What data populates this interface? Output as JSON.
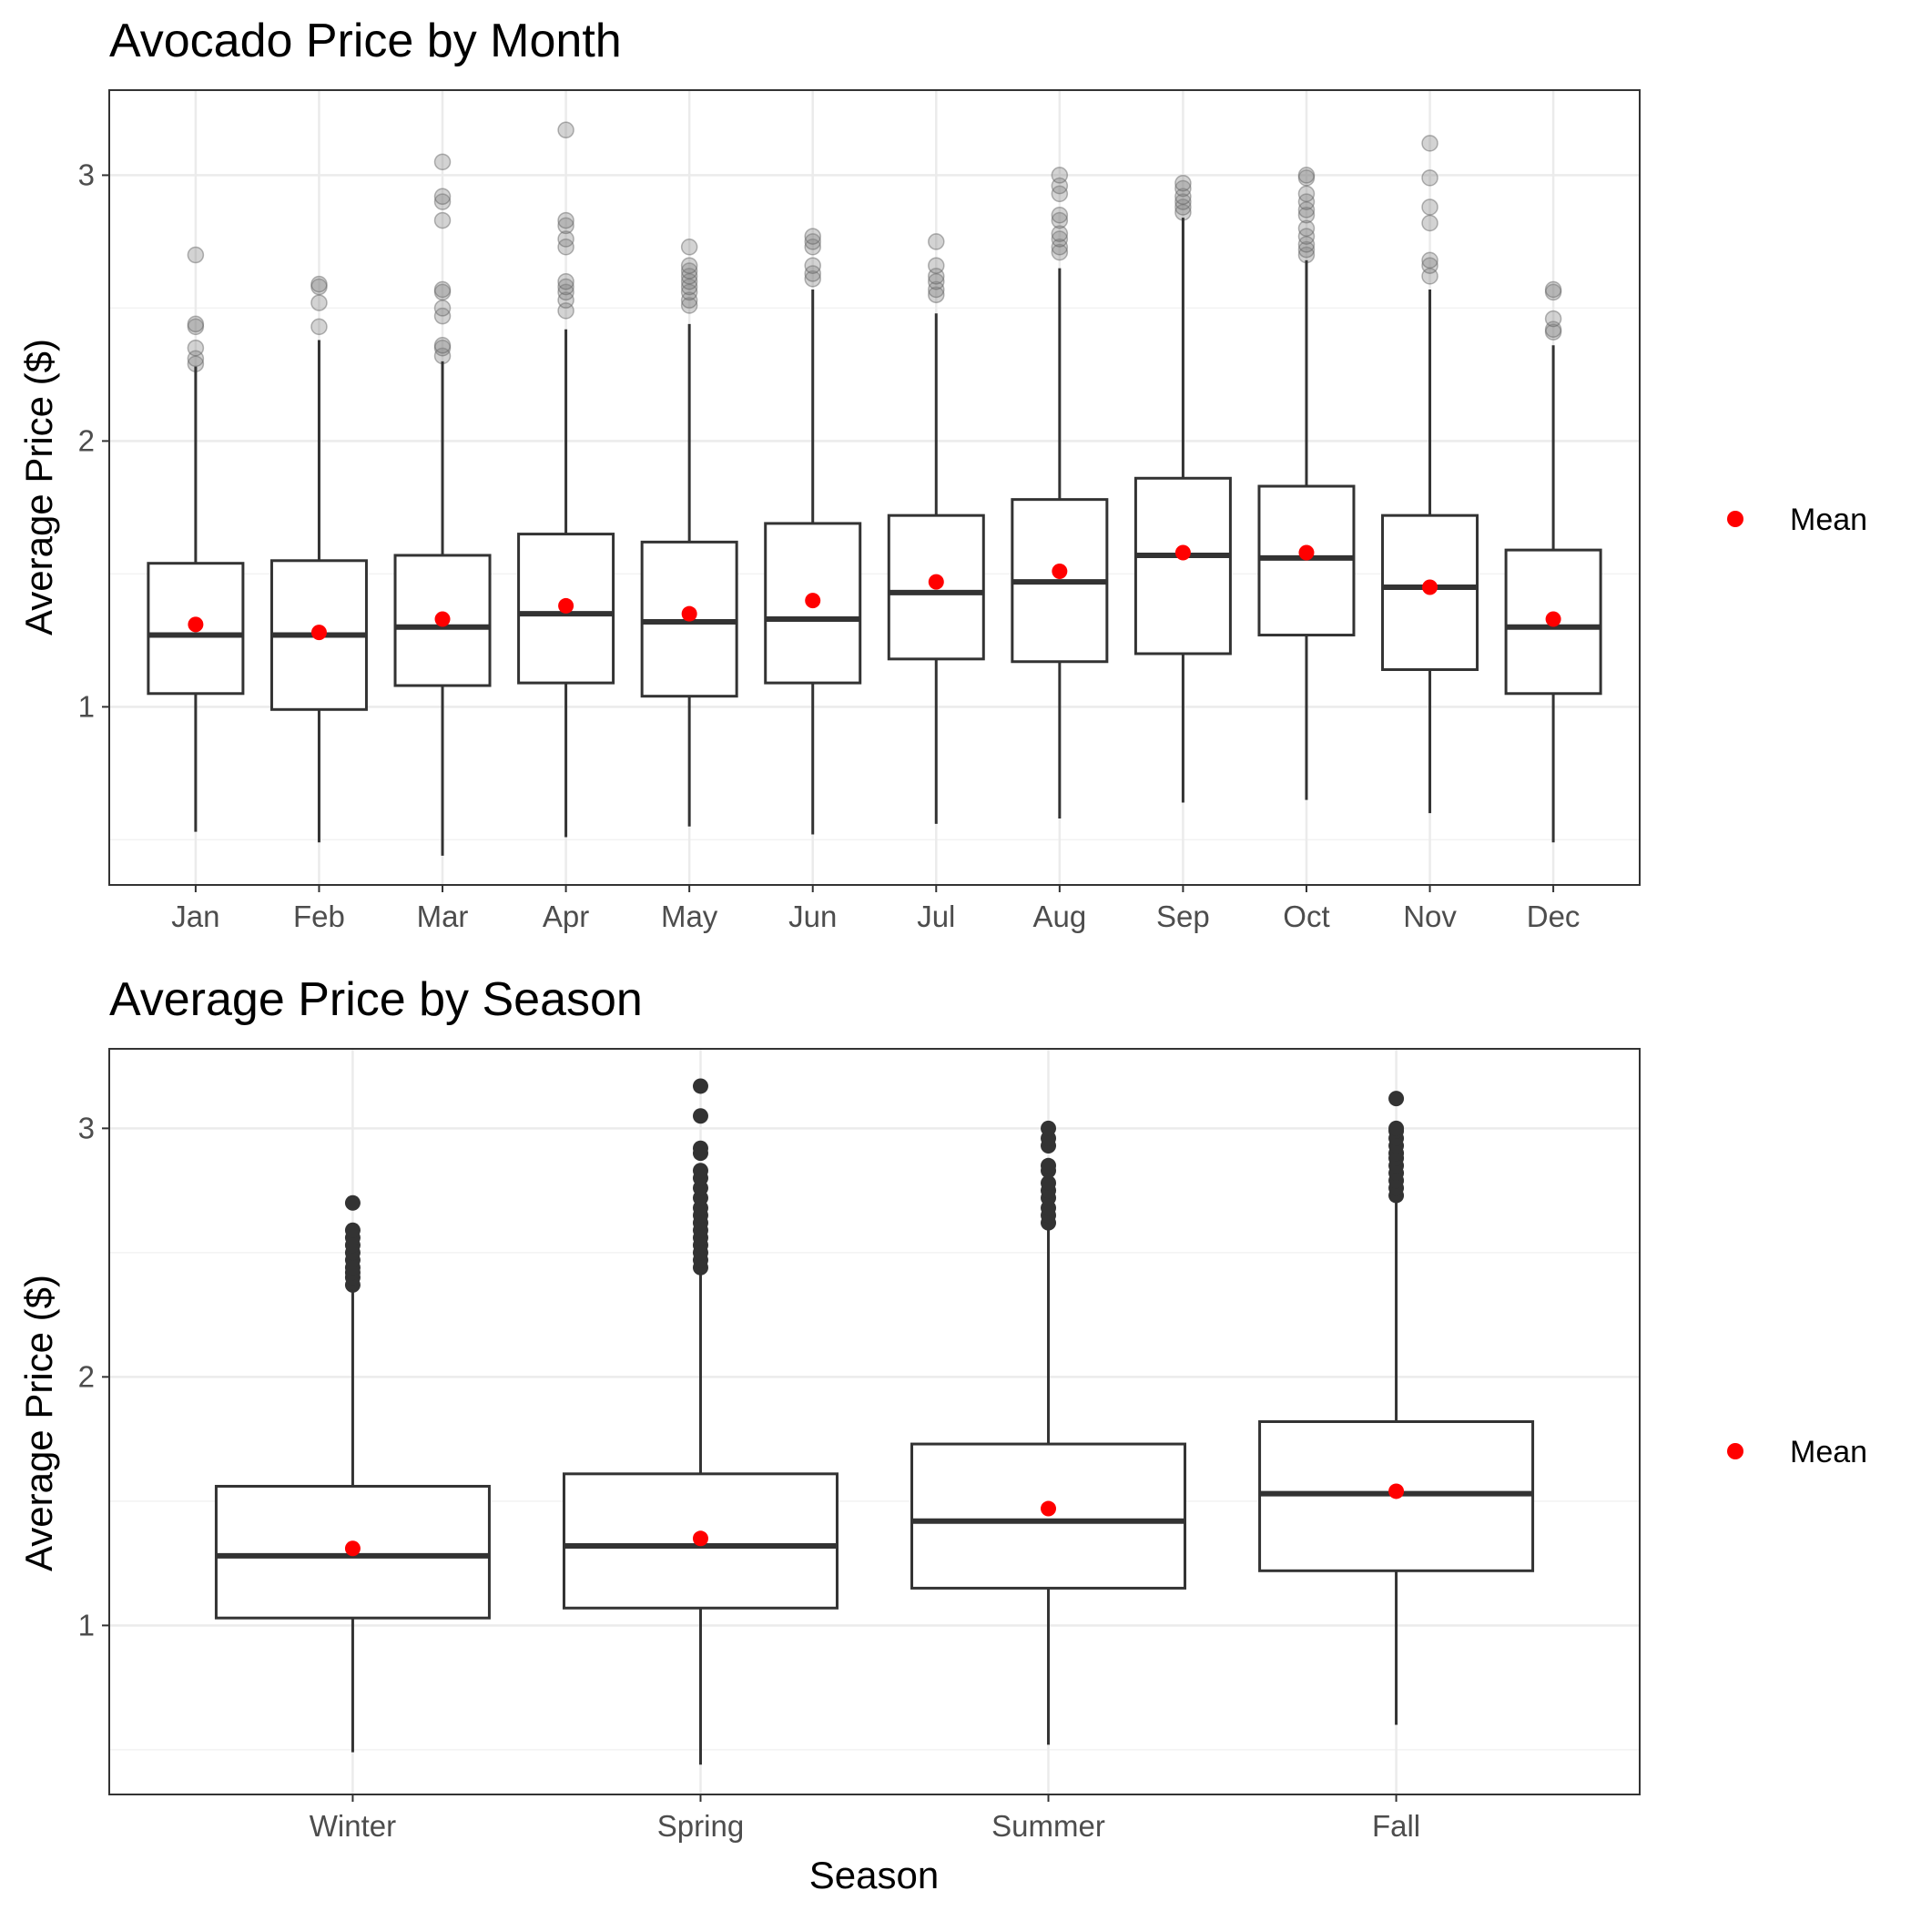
{
  "chart_data": [
    {
      "type": "box",
      "title": "Avocado Price by Month",
      "xlabel": "",
      "ylabel": "Average Price ($)",
      "ylim": [
        0.33,
        3.32
      ],
      "yticks": [
        1,
        2,
        3
      ],
      "grid": true,
      "legend": {
        "label": "Mean",
        "position": "right"
      },
      "colors": {
        "box": "#333333",
        "mean": "#ff0000",
        "outlier": "#808080",
        "grid": "#ebebeb"
      },
      "categories": [
        "Jan",
        "Feb",
        "Mar",
        "Apr",
        "May",
        "Jun",
        "Jul",
        "Aug",
        "Sep",
        "Oct",
        "Nov",
        "Dec"
      ],
      "boxes": [
        {
          "low": 0.53,
          "q1": 1.05,
          "median": 1.27,
          "q3": 1.54,
          "high": 2.28,
          "mean": 1.31,
          "outliers": [
            2.29,
            2.31,
            2.35,
            2.43,
            2.44,
            2.7
          ]
        },
        {
          "low": 0.49,
          "q1": 0.99,
          "median": 1.27,
          "q3": 1.55,
          "high": 2.38,
          "mean": 1.28,
          "outliers": [
            2.43,
            2.52,
            2.58,
            2.59
          ]
        },
        {
          "low": 0.44,
          "q1": 1.08,
          "median": 1.3,
          "q3": 1.57,
          "high": 2.3,
          "mean": 1.33,
          "outliers": [
            2.32,
            2.35,
            2.36,
            2.47,
            2.5,
            2.56,
            2.57,
            2.83,
            2.9,
            2.92,
            3.05
          ]
        },
        {
          "low": 0.51,
          "q1": 1.09,
          "median": 1.35,
          "q3": 1.65,
          "high": 2.42,
          "mean": 1.38,
          "outliers": [
            2.49,
            2.53,
            2.56,
            2.58,
            2.6,
            2.73,
            2.76,
            2.81,
            2.83,
            3.17
          ]
        },
        {
          "low": 0.55,
          "q1": 1.04,
          "median": 1.32,
          "q3": 1.62,
          "high": 2.44,
          "mean": 1.35,
          "outliers": [
            2.51,
            2.53,
            2.56,
            2.58,
            2.6,
            2.62,
            2.64,
            2.66,
            2.73
          ]
        },
        {
          "low": 0.52,
          "q1": 1.09,
          "median": 1.33,
          "q3": 1.69,
          "high": 2.57,
          "mean": 1.4,
          "outliers": [
            2.61,
            2.63,
            2.66,
            2.73,
            2.75,
            2.77
          ]
        },
        {
          "low": 0.56,
          "q1": 1.18,
          "median": 1.43,
          "q3": 1.72,
          "high": 2.48,
          "mean": 1.47,
          "outliers": [
            2.55,
            2.57,
            2.6,
            2.62,
            2.66,
            2.75
          ]
        },
        {
          "low": 0.58,
          "q1": 1.17,
          "median": 1.47,
          "q3": 1.78,
          "high": 2.65,
          "mean": 1.51,
          "outliers": [
            2.71,
            2.73,
            2.76,
            2.78,
            2.83,
            2.85,
            2.93,
            2.96,
            3.0
          ]
        },
        {
          "low": 0.64,
          "q1": 1.2,
          "median": 1.57,
          "q3": 1.86,
          "high": 2.84,
          "mean": 1.58,
          "outliers": [
            2.86,
            2.88,
            2.9,
            2.92,
            2.95,
            2.97
          ]
        },
        {
          "low": 0.65,
          "q1": 1.27,
          "median": 1.56,
          "q3": 1.83,
          "high": 2.68,
          "mean": 1.58,
          "outliers": [
            2.7,
            2.72,
            2.74,
            2.77,
            2.8,
            2.85,
            2.87,
            2.9,
            2.93,
            2.99,
            3.0
          ]
        },
        {
          "low": 0.6,
          "q1": 1.14,
          "median": 1.45,
          "q3": 1.72,
          "high": 2.57,
          "mean": 1.45,
          "outliers": [
            2.62,
            2.66,
            2.68,
            2.82,
            2.88,
            2.99,
            3.12
          ]
        },
        {
          "low": 0.49,
          "q1": 1.05,
          "median": 1.3,
          "q3": 1.59,
          "high": 2.36,
          "mean": 1.33,
          "outliers": [
            2.41,
            2.42,
            2.46,
            2.56,
            2.57
          ]
        }
      ]
    },
    {
      "type": "box",
      "title": "Average Price by Season",
      "xlabel": "Season",
      "ylabel": "Average Price ($)",
      "ylim": [
        0.32,
        3.32
      ],
      "yticks": [
        1,
        2,
        3
      ],
      "grid": true,
      "legend": {
        "label": "Mean",
        "position": "right"
      },
      "colors": {
        "box": "#333333",
        "mean": "#ff0000",
        "outlier": "#333333",
        "grid": "#ebebeb"
      },
      "categories": [
        "Winter",
        "Spring",
        "Summer",
        "Fall"
      ],
      "boxes": [
        {
          "low": 0.49,
          "q1": 1.03,
          "median": 1.28,
          "q3": 1.56,
          "high": 2.35,
          "mean": 1.31,
          "outliers": [
            2.37,
            2.4,
            2.42,
            2.44,
            2.47,
            2.5,
            2.53,
            2.56,
            2.59,
            2.7
          ]
        },
        {
          "low": 0.44,
          "q1": 1.07,
          "median": 1.32,
          "q3": 1.61,
          "high": 2.42,
          "mean": 1.35,
          "outliers": [
            2.44,
            2.47,
            2.5,
            2.53,
            2.56,
            2.59,
            2.62,
            2.65,
            2.68,
            2.72,
            2.76,
            2.8,
            2.83,
            2.9,
            2.92,
            3.05,
            3.17
          ]
        },
        {
          "low": 0.52,
          "q1": 1.15,
          "median": 1.42,
          "q3": 1.73,
          "high": 2.6,
          "mean": 1.47,
          "outliers": [
            2.62,
            2.65,
            2.68,
            2.72,
            2.75,
            2.78,
            2.83,
            2.85,
            2.93,
            2.96,
            3.0
          ]
        },
        {
          "low": 0.6,
          "q1": 1.22,
          "median": 1.53,
          "q3": 1.82,
          "high": 2.71,
          "mean": 1.54,
          "outliers": [
            2.73,
            2.76,
            2.79,
            2.82,
            2.85,
            2.88,
            2.9,
            2.93,
            2.96,
            2.99,
            3.0,
            3.12
          ]
        }
      ]
    }
  ]
}
